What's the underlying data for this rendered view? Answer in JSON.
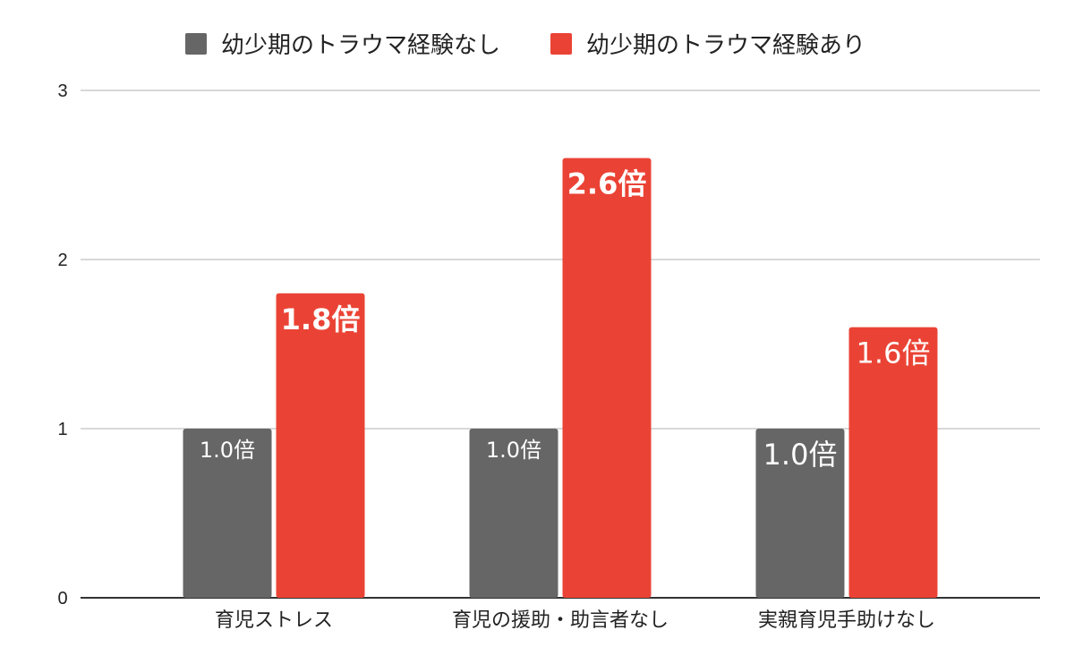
{
  "chart_data": {
    "type": "bar",
    "categories": [
      "育児ストレス",
      "育児の援助・助言者なし",
      "実親育児手助けなし"
    ],
    "series": [
      {
        "name": "幼少期のトラウマ経験なし",
        "color": "#666666",
        "values": [
          1.0,
          1.0,
          1.0
        ],
        "labels": [
          "1.0倍",
          "1.0倍",
          "1.0倍"
        ]
      },
      {
        "name": "幼少期のトラウマ経験あり",
        "color": "#ea4335",
        "values": [
          1.8,
          2.6,
          1.6
        ],
        "labels": [
          "1.8倍",
          "2.6倍",
          "1.6倍"
        ]
      }
    ],
    "title": "",
    "xlabel": "",
    "ylabel": "",
    "ylim": [
      0,
      3
    ],
    "yticks": [
      "0",
      "1",
      "2",
      "3"
    ],
    "grid": true,
    "legend_position": "top-center"
  }
}
